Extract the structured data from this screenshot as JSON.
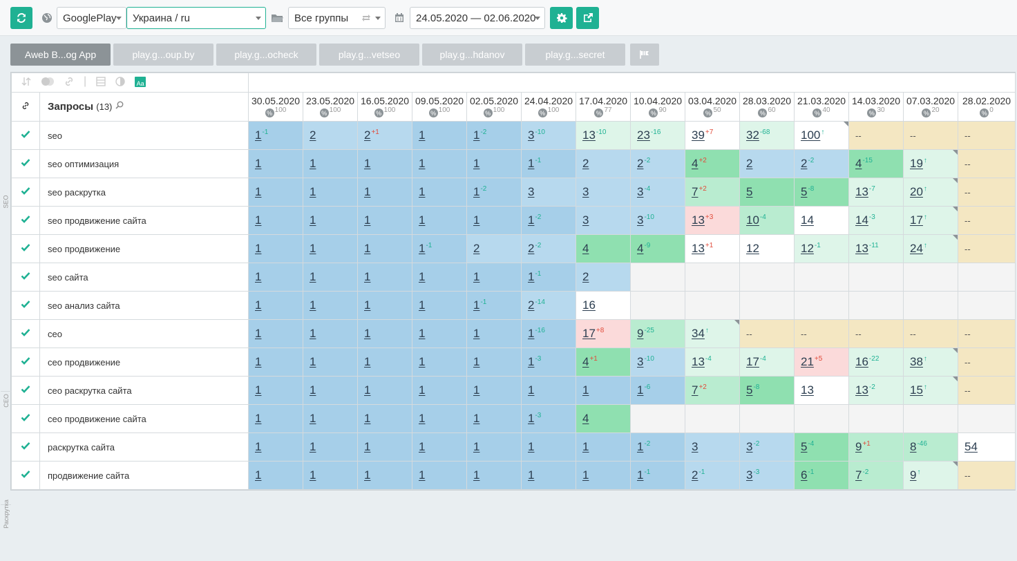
{
  "toolbar": {
    "store_select": "GooglePlay",
    "region_select": "Украина / ru",
    "group_select": "Все группы",
    "date_range": "24.05.2020 — 02.06.2020"
  },
  "tabs": [
    {
      "label": "Aweb B...og App",
      "active": true
    },
    {
      "label": "play.g...oup.by"
    },
    {
      "label": "play.g...ocheck"
    },
    {
      "label": "play.g...vetseo"
    },
    {
      "label": "play.g...hdanov"
    },
    {
      "label": "play.g...secret"
    }
  ],
  "grid": {
    "queries_header": "Запросы",
    "queries_count": "(13)",
    "side_groups": [
      {
        "label": "SEO",
        "rows": 7
      },
      {
        "label": "СЕО",
        "rows": 4
      },
      {
        "label": "Раскрутка",
        "rows": 2
      }
    ],
    "dates": [
      {
        "date": "30.05.2020",
        "pct": "100"
      },
      {
        "date": "23.05.2020",
        "pct": "100"
      },
      {
        "date": "16.05.2020",
        "pct": "100"
      },
      {
        "date": "09.05.2020",
        "pct": "100"
      },
      {
        "date": "02.05.2020",
        "pct": "100"
      },
      {
        "date": "24.04.2020",
        "pct": "100"
      },
      {
        "date": "17.04.2020",
        "pct": "77"
      },
      {
        "date": "10.04.2020",
        "pct": "90"
      },
      {
        "date": "03.04.2020",
        "pct": "50"
      },
      {
        "date": "28.03.2020",
        "pct": "60"
      },
      {
        "date": "21.03.2020",
        "pct": "40"
      },
      {
        "date": "14.03.2020",
        "pct": "30"
      },
      {
        "date": "07.03.2020",
        "pct": "20"
      },
      {
        "date": "28.02.2020",
        "pct": "0"
      }
    ],
    "rows": [
      {
        "query": "seo",
        "cells": [
          {
            "v": "1",
            "d": "-1",
            "t": "up",
            "c": "b1"
          },
          {
            "v": "2",
            "c": "b2"
          },
          {
            "v": "2",
            "d": "+1",
            "t": "down",
            "c": "b2"
          },
          {
            "v": "1",
            "c": "b1"
          },
          {
            "v": "1",
            "d": "-2",
            "t": "up",
            "c": "b1"
          },
          {
            "v": "3",
            "d": "-10",
            "t": "up",
            "c": "b2"
          },
          {
            "v": "13",
            "d": "-10",
            "t": "up",
            "c": "g3"
          },
          {
            "v": "23",
            "d": "-16",
            "t": "up",
            "c": "g3"
          },
          {
            "v": "39",
            "d": "+7",
            "t": "down",
            "c": "w"
          },
          {
            "v": "32",
            "d": "-68",
            "t": "up",
            "c": "g3"
          },
          {
            "v": "100",
            "d": "↑",
            "t": "arr",
            "c": "w",
            "corner": true
          },
          {
            "v": "--",
            "c": "y"
          },
          {
            "v": "--",
            "c": "y"
          },
          {
            "v": "--",
            "c": "y"
          }
        ]
      },
      {
        "query": "seo оптимизация",
        "cells": [
          {
            "v": "1",
            "c": "b1"
          },
          {
            "v": "1",
            "c": "b1"
          },
          {
            "v": "1",
            "c": "b1"
          },
          {
            "v": "1",
            "c": "b1"
          },
          {
            "v": "1",
            "c": "b1"
          },
          {
            "v": "1",
            "d": "-1",
            "t": "up",
            "c": "b1"
          },
          {
            "v": "2",
            "c": "b2"
          },
          {
            "v": "2",
            "d": "-2",
            "t": "up",
            "c": "b2"
          },
          {
            "v": "4",
            "d": "+2",
            "t": "down",
            "c": "g1"
          },
          {
            "v": "2",
            "c": "b2"
          },
          {
            "v": "2",
            "d": "-2",
            "t": "up",
            "c": "b2"
          },
          {
            "v": "4",
            "d": "-15",
            "t": "up",
            "c": "g1"
          },
          {
            "v": "19",
            "d": "↑",
            "t": "arr",
            "c": "g3",
            "corner": true
          },
          {
            "v": "--",
            "c": "y"
          }
        ]
      },
      {
        "query": "seo раскрутка",
        "cells": [
          {
            "v": "1",
            "c": "b1"
          },
          {
            "v": "1",
            "c": "b1"
          },
          {
            "v": "1",
            "c": "b1"
          },
          {
            "v": "1",
            "c": "b1"
          },
          {
            "v": "1",
            "d": "-2",
            "t": "up",
            "c": "b1"
          },
          {
            "v": "3",
            "c": "b2"
          },
          {
            "v": "3",
            "c": "b2"
          },
          {
            "v": "3",
            "d": "-4",
            "t": "up",
            "c": "b2"
          },
          {
            "v": "7",
            "d": "+2",
            "t": "down",
            "c": "g2"
          },
          {
            "v": "5",
            "c": "g1"
          },
          {
            "v": "5",
            "d": "-8",
            "t": "up",
            "c": "g1"
          },
          {
            "v": "13",
            "d": "-7",
            "t": "up",
            "c": "g3"
          },
          {
            "v": "20",
            "d": "↑",
            "t": "arr",
            "c": "g3",
            "corner": true
          },
          {
            "v": "--",
            "c": "y"
          }
        ]
      },
      {
        "query": "seo продвижение сайта",
        "cells": [
          {
            "v": "1",
            "c": "b1"
          },
          {
            "v": "1",
            "c": "b1"
          },
          {
            "v": "1",
            "c": "b1"
          },
          {
            "v": "1",
            "c": "b1"
          },
          {
            "v": "1",
            "c": "b1"
          },
          {
            "v": "1",
            "d": "-2",
            "t": "up",
            "c": "b1"
          },
          {
            "v": "3",
            "c": "b2"
          },
          {
            "v": "3",
            "d": "-10",
            "t": "up",
            "c": "b2"
          },
          {
            "v": "13",
            "d": "+3",
            "t": "down",
            "c": "p"
          },
          {
            "v": "10",
            "d": "-4",
            "t": "up",
            "c": "g2"
          },
          {
            "v": "14",
            "c": "w"
          },
          {
            "v": "14",
            "d": "-3",
            "t": "up",
            "c": "g3"
          },
          {
            "v": "17",
            "d": "↑",
            "t": "arr",
            "c": "g3",
            "corner": true
          },
          {
            "v": "--",
            "c": "y"
          }
        ]
      },
      {
        "query": "seo продвижение",
        "cells": [
          {
            "v": "1",
            "c": "b1"
          },
          {
            "v": "1",
            "c": "b1"
          },
          {
            "v": "1",
            "c": "b1"
          },
          {
            "v": "1",
            "d": "-1",
            "t": "up",
            "c": "b1"
          },
          {
            "v": "2",
            "c": "b2"
          },
          {
            "v": "2",
            "d": "-2",
            "t": "up",
            "c": "b2"
          },
          {
            "v": "4",
            "c": "g1"
          },
          {
            "v": "4",
            "d": "-9",
            "t": "up",
            "c": "g1"
          },
          {
            "v": "13",
            "d": "+1",
            "t": "down",
            "c": "w"
          },
          {
            "v": "12",
            "c": "w"
          },
          {
            "v": "12",
            "d": "-1",
            "t": "up",
            "c": "g3"
          },
          {
            "v": "13",
            "d": "-11",
            "t": "up",
            "c": "g3"
          },
          {
            "v": "24",
            "d": "↑",
            "t": "arr",
            "c": "g3",
            "corner": true
          },
          {
            "v": "--",
            "c": "y"
          }
        ]
      },
      {
        "query": "seo сайта",
        "cells": [
          {
            "v": "1",
            "c": "b1"
          },
          {
            "v": "1",
            "c": "b1"
          },
          {
            "v": "1",
            "c": "b1"
          },
          {
            "v": "1",
            "c": "b1"
          },
          {
            "v": "1",
            "c": "b1"
          },
          {
            "v": "1",
            "d": "-1",
            "t": "up",
            "c": "b1"
          },
          {
            "v": "2",
            "c": "b2"
          },
          {
            "v": "",
            "c": "e"
          },
          {
            "v": "",
            "c": "e"
          },
          {
            "v": "",
            "c": "e"
          },
          {
            "v": "",
            "c": "e"
          },
          {
            "v": "",
            "c": "e"
          },
          {
            "v": "",
            "c": "e"
          },
          {
            "v": "",
            "c": "e"
          }
        ]
      },
      {
        "query": "seo анализ сайта",
        "cells": [
          {
            "v": "1",
            "c": "b1"
          },
          {
            "v": "1",
            "c": "b1"
          },
          {
            "v": "1",
            "c": "b1"
          },
          {
            "v": "1",
            "c": "b1"
          },
          {
            "v": "1",
            "d": "-1",
            "t": "up",
            "c": "b1"
          },
          {
            "v": "2",
            "d": "-14",
            "t": "up",
            "c": "b2"
          },
          {
            "v": "16",
            "c": "w"
          },
          {
            "v": "",
            "c": "e"
          },
          {
            "v": "",
            "c": "e"
          },
          {
            "v": "",
            "c": "e"
          },
          {
            "v": "",
            "c": "e"
          },
          {
            "v": "",
            "c": "e"
          },
          {
            "v": "",
            "c": "e"
          },
          {
            "v": "",
            "c": "e"
          }
        ]
      },
      {
        "query": "сео",
        "cells": [
          {
            "v": "1",
            "c": "b1"
          },
          {
            "v": "1",
            "c": "b1"
          },
          {
            "v": "1",
            "c": "b1"
          },
          {
            "v": "1",
            "c": "b1"
          },
          {
            "v": "1",
            "c": "b1"
          },
          {
            "v": "1",
            "d": "-16",
            "t": "up",
            "c": "b1"
          },
          {
            "v": "17",
            "d": "+8",
            "t": "down",
            "c": "p"
          },
          {
            "v": "9",
            "d": "-25",
            "t": "up",
            "c": "g2"
          },
          {
            "v": "34",
            "d": "↑",
            "t": "arr",
            "c": "g3",
            "corner": true
          },
          {
            "v": "--",
            "c": "y"
          },
          {
            "v": "--",
            "c": "y"
          },
          {
            "v": "--",
            "c": "y"
          },
          {
            "v": "--",
            "c": "y"
          },
          {
            "v": "--",
            "c": "y"
          }
        ]
      },
      {
        "query": "сео продвижение",
        "cells": [
          {
            "v": "1",
            "c": "b1"
          },
          {
            "v": "1",
            "c": "b1"
          },
          {
            "v": "1",
            "c": "b1"
          },
          {
            "v": "1",
            "c": "b1"
          },
          {
            "v": "1",
            "c": "b1"
          },
          {
            "v": "1",
            "d": "-3",
            "t": "up",
            "c": "b1"
          },
          {
            "v": "4",
            "d": "+1",
            "t": "down",
            "c": "g1"
          },
          {
            "v": "3",
            "d": "-10",
            "t": "up",
            "c": "b2"
          },
          {
            "v": "13",
            "d": "-4",
            "t": "up",
            "c": "g3"
          },
          {
            "v": "17",
            "d": "-4",
            "t": "up",
            "c": "g3"
          },
          {
            "v": "21",
            "d": "+5",
            "t": "down",
            "c": "p"
          },
          {
            "v": "16",
            "d": "-22",
            "t": "up",
            "c": "g3"
          },
          {
            "v": "38",
            "d": "↑",
            "t": "arr",
            "c": "g3",
            "corner": true
          },
          {
            "v": "--",
            "c": "y"
          }
        ]
      },
      {
        "query": "сео раскрутка сайта",
        "cells": [
          {
            "v": "1",
            "c": "b1"
          },
          {
            "v": "1",
            "c": "b1"
          },
          {
            "v": "1",
            "c": "b1"
          },
          {
            "v": "1",
            "c": "b1"
          },
          {
            "v": "1",
            "c": "b1"
          },
          {
            "v": "1",
            "c": "b1"
          },
          {
            "v": "1",
            "c": "b1"
          },
          {
            "v": "1",
            "d": "-6",
            "t": "up",
            "c": "b1"
          },
          {
            "v": "7",
            "d": "+2",
            "t": "down",
            "c": "g2"
          },
          {
            "v": "5",
            "d": "-8",
            "t": "up",
            "c": "g1"
          },
          {
            "v": "13",
            "c": "w"
          },
          {
            "v": "13",
            "d": "-2",
            "t": "up",
            "c": "g3"
          },
          {
            "v": "15",
            "d": "↑",
            "t": "arr",
            "c": "g3",
            "corner": true
          },
          {
            "v": "--",
            "c": "y"
          }
        ]
      },
      {
        "query": "сео продвижение сайта",
        "cells": [
          {
            "v": "1",
            "c": "b1"
          },
          {
            "v": "1",
            "c": "b1"
          },
          {
            "v": "1",
            "c": "b1"
          },
          {
            "v": "1",
            "c": "b1"
          },
          {
            "v": "1",
            "c": "b1"
          },
          {
            "v": "1",
            "d": "-3",
            "t": "up",
            "c": "b1"
          },
          {
            "v": "4",
            "c": "g1"
          },
          {
            "v": "",
            "c": "e"
          },
          {
            "v": "",
            "c": "e"
          },
          {
            "v": "",
            "c": "e"
          },
          {
            "v": "",
            "c": "e"
          },
          {
            "v": "",
            "c": "e"
          },
          {
            "v": "",
            "c": "e"
          },
          {
            "v": "",
            "c": "e"
          }
        ]
      },
      {
        "query": "раскрутка сайта",
        "cells": [
          {
            "v": "1",
            "c": "b1"
          },
          {
            "v": "1",
            "c": "b1"
          },
          {
            "v": "1",
            "c": "b1"
          },
          {
            "v": "1",
            "c": "b1"
          },
          {
            "v": "1",
            "c": "b1"
          },
          {
            "v": "1",
            "c": "b1"
          },
          {
            "v": "1",
            "c": "b1"
          },
          {
            "v": "1",
            "d": "-2",
            "t": "up",
            "c": "b1"
          },
          {
            "v": "3",
            "c": "b2"
          },
          {
            "v": "3",
            "d": "-2",
            "t": "up",
            "c": "b2"
          },
          {
            "v": "5",
            "d": "-4",
            "t": "up",
            "c": "g1"
          },
          {
            "v": "9",
            "d": "+1",
            "t": "down",
            "c": "g2"
          },
          {
            "v": "8",
            "d": "-46",
            "t": "up",
            "c": "g2"
          },
          {
            "v": "54",
            "c": "w"
          }
        ]
      },
      {
        "query": "продвижение сайта",
        "cells": [
          {
            "v": "1",
            "c": "b1"
          },
          {
            "v": "1",
            "c": "b1"
          },
          {
            "v": "1",
            "c": "b1"
          },
          {
            "v": "1",
            "c": "b1"
          },
          {
            "v": "1",
            "c": "b1"
          },
          {
            "v": "1",
            "c": "b1"
          },
          {
            "v": "1",
            "c": "b1"
          },
          {
            "v": "1",
            "d": "-1",
            "t": "up",
            "c": "b1"
          },
          {
            "v": "2",
            "d": "-1",
            "t": "up",
            "c": "b2"
          },
          {
            "v": "3",
            "d": "-3",
            "t": "up",
            "c": "b2"
          },
          {
            "v": "6",
            "d": "-1",
            "t": "up",
            "c": "g1"
          },
          {
            "v": "7",
            "d": "-2",
            "t": "up",
            "c": "g2"
          },
          {
            "v": "9",
            "d": "↑",
            "t": "arr",
            "c": "g3",
            "corner": true
          },
          {
            "v": "--",
            "c": "y"
          }
        ]
      }
    ]
  }
}
